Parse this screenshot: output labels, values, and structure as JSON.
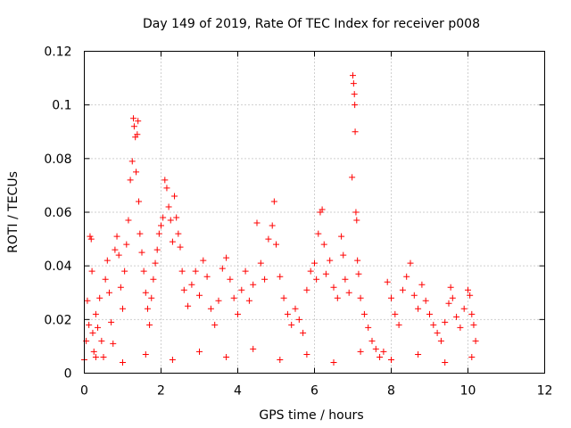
{
  "chart_data": {
    "type": "scatter",
    "title": "Day 149 of 2019, Rate Of TEC Index for receiver p008",
    "xlabel": "GPS time / hours",
    "ylabel": "ROTI / TECUs",
    "xlim": [
      0,
      12
    ],
    "ylim": [
      0,
      0.12
    ],
    "xticks": [
      0,
      2,
      4,
      6,
      8,
      10,
      12
    ],
    "xtick_labels": [
      "0",
      "2",
      "4",
      "6",
      "8",
      "10",
      "12"
    ],
    "yticks": [
      0,
      0.02,
      0.04,
      0.06,
      0.08,
      0.1,
      0.12
    ],
    "ytick_labels": [
      "0",
      "0.02",
      "0.04",
      "0.06",
      "0.08",
      "0.1",
      "0.12"
    ],
    "grid": true,
    "marker": "plus",
    "color": "#ff0000",
    "series": [
      {
        "name": "ROTI",
        "points": [
          [
            0.0,
            0.005
          ],
          [
            0.05,
            0.012
          ],
          [
            0.08,
            0.027
          ],
          [
            0.12,
            0.018
          ],
          [
            0.15,
            0.051
          ],
          [
            0.18,
            0.05
          ],
          [
            0.2,
            0.038
          ],
          [
            0.22,
            0.015
          ],
          [
            0.25,
            0.008
          ],
          [
            0.3,
            0.022
          ],
          [
            0.35,
            0.017
          ],
          [
            0.4,
            0.028
          ],
          [
            0.45,
            0.012
          ],
          [
            0.5,
            0.006
          ],
          [
            0.55,
            0.035
          ],
          [
            0.6,
            0.042
          ],
          [
            0.65,
            0.03
          ],
          [
            0.7,
            0.019
          ],
          [
            0.75,
            0.011
          ],
          [
            0.8,
            0.046
          ],
          [
            0.85,
            0.051
          ],
          [
            0.9,
            0.044
          ],
          [
            0.95,
            0.032
          ],
          [
            1.0,
            0.024
          ],
          [
            1.05,
            0.038
          ],
          [
            1.1,
            0.048
          ],
          [
            1.15,
            0.057
          ],
          [
            1.2,
            0.072
          ],
          [
            1.25,
            0.079
          ],
          [
            1.28,
            0.095
          ],
          [
            1.3,
            0.092
          ],
          [
            1.33,
            0.088
          ],
          [
            1.35,
            0.075
          ],
          [
            1.38,
            0.089
          ],
          [
            1.4,
            0.094
          ],
          [
            1.42,
            0.064
          ],
          [
            1.45,
            0.052
          ],
          [
            1.5,
            0.045
          ],
          [
            1.55,
            0.038
          ],
          [
            1.6,
            0.03
          ],
          [
            1.65,
            0.024
          ],
          [
            1.7,
            0.018
          ],
          [
            1.75,
            0.028
          ],
          [
            1.8,
            0.035
          ],
          [
            1.85,
            0.041
          ],
          [
            1.9,
            0.046
          ],
          [
            1.95,
            0.052
          ],
          [
            2.0,
            0.055
          ],
          [
            2.05,
            0.058
          ],
          [
            2.1,
            0.072
          ],
          [
            2.15,
            0.069
          ],
          [
            2.2,
            0.062
          ],
          [
            2.25,
            0.057
          ],
          [
            2.3,
            0.049
          ],
          [
            2.35,
            0.066
          ],
          [
            2.4,
            0.058
          ],
          [
            2.45,
            0.052
          ],
          [
            2.5,
            0.047
          ],
          [
            2.55,
            0.038
          ],
          [
            2.6,
            0.031
          ],
          [
            2.7,
            0.025
          ],
          [
            2.8,
            0.033
          ],
          [
            2.9,
            0.038
          ],
          [
            3.0,
            0.029
          ],
          [
            3.1,
            0.042
          ],
          [
            3.2,
            0.036
          ],
          [
            3.3,
            0.024
          ],
          [
            3.4,
            0.018
          ],
          [
            3.5,
            0.027
          ],
          [
            3.6,
            0.039
          ],
          [
            3.7,
            0.043
          ],
          [
            3.8,
            0.035
          ],
          [
            3.9,
            0.028
          ],
          [
            4.0,
            0.022
          ],
          [
            4.1,
            0.031
          ],
          [
            4.2,
            0.038
          ],
          [
            4.3,
            0.027
          ],
          [
            4.4,
            0.033
          ],
          [
            4.5,
            0.056
          ],
          [
            4.6,
            0.041
          ],
          [
            4.7,
            0.035
          ],
          [
            4.8,
            0.05
          ],
          [
            4.9,
            0.055
          ],
          [
            4.95,
            0.064
          ],
          [
            5.0,
            0.048
          ],
          [
            5.1,
            0.036
          ],
          [
            5.2,
            0.028
          ],
          [
            5.3,
            0.022
          ],
          [
            5.4,
            0.018
          ],
          [
            5.5,
            0.024
          ],
          [
            5.6,
            0.02
          ],
          [
            5.7,
            0.015
          ],
          [
            5.8,
            0.031
          ],
          [
            5.9,
            0.038
          ],
          [
            6.0,
            0.041
          ],
          [
            6.05,
            0.035
          ],
          [
            6.1,
            0.052
          ],
          [
            6.15,
            0.06
          ],
          [
            6.2,
            0.061
          ],
          [
            6.25,
            0.048
          ],
          [
            6.3,
            0.037
          ],
          [
            6.4,
            0.042
          ],
          [
            6.5,
            0.032
          ],
          [
            6.6,
            0.028
          ],
          [
            6.7,
            0.051
          ],
          [
            6.75,
            0.044
          ],
          [
            6.8,
            0.035
          ],
          [
            6.9,
            0.03
          ],
          [
            6.98,
            0.073
          ],
          [
            7.0,
            0.111
          ],
          [
            7.02,
            0.108
          ],
          [
            7.04,
            0.104
          ],
          [
            7.05,
            0.1
          ],
          [
            7.06,
            0.09
          ],
          [
            7.08,
            0.06
          ],
          [
            7.1,
            0.057
          ],
          [
            7.12,
            0.042
          ],
          [
            7.15,
            0.037
          ],
          [
            7.2,
            0.028
          ],
          [
            7.3,
            0.022
          ],
          [
            7.4,
            0.017
          ],
          [
            7.5,
            0.012
          ],
          [
            7.6,
            0.009
          ],
          [
            7.7,
            0.006
          ],
          [
            7.8,
            0.008
          ],
          [
            7.9,
            0.034
          ],
          [
            8.0,
            0.028
          ],
          [
            8.1,
            0.022
          ],
          [
            8.2,
            0.018
          ],
          [
            8.3,
            0.031
          ],
          [
            8.4,
            0.036
          ],
          [
            8.5,
            0.041
          ],
          [
            8.6,
            0.029
          ],
          [
            8.7,
            0.024
          ],
          [
            8.8,
            0.033
          ],
          [
            8.9,
            0.027
          ],
          [
            9.0,
            0.022
          ],
          [
            9.1,
            0.018
          ],
          [
            9.2,
            0.015
          ],
          [
            9.3,
            0.012
          ],
          [
            9.4,
            0.019
          ],
          [
            9.5,
            0.026
          ],
          [
            9.55,
            0.032
          ],
          [
            9.6,
            0.028
          ],
          [
            9.7,
            0.021
          ],
          [
            9.8,
            0.017
          ],
          [
            9.9,
            0.024
          ],
          [
            10.0,
            0.031
          ],
          [
            10.05,
            0.029
          ],
          [
            10.1,
            0.022
          ],
          [
            10.15,
            0.018
          ],
          [
            10.2,
            0.012
          ],
          [
            0.3,
            0.006
          ],
          [
            1.0,
            0.004
          ],
          [
            1.6,
            0.007
          ],
          [
            2.3,
            0.005
          ],
          [
            3.0,
            0.008
          ],
          [
            3.7,
            0.006
          ],
          [
            4.4,
            0.009
          ],
          [
            5.1,
            0.005
          ],
          [
            5.8,
            0.007
          ],
          [
            6.5,
            0.004
          ],
          [
            7.2,
            0.008
          ],
          [
            8.0,
            0.005
          ],
          [
            8.7,
            0.007
          ],
          [
            9.4,
            0.004
          ],
          [
            10.1,
            0.006
          ]
        ]
      }
    ]
  }
}
